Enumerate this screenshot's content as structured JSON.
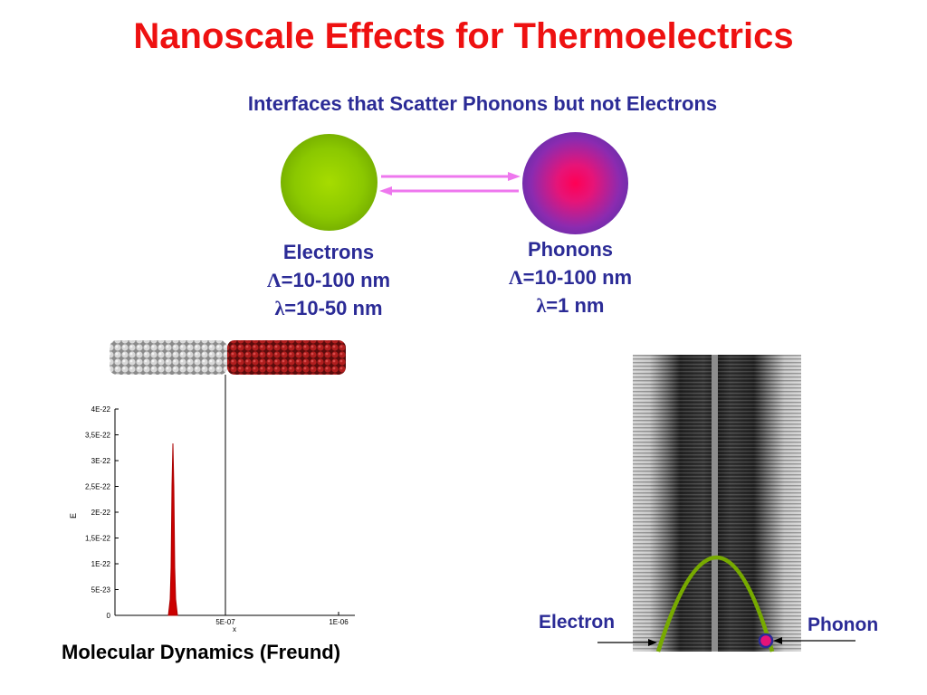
{
  "slide": {
    "title": "Nanoscale Effects for Thermoelectrics",
    "subtitle": "Interfaces that Scatter Phonons but not Electrons"
  },
  "electrons": {
    "name": "Electrons",
    "mfp_symbol": "Λ",
    "mfp_value": "=10-100 nm",
    "wl_symbol": "λ",
    "wl_value": "=10-50 nm",
    "color": "#8bc800"
  },
  "phonons": {
    "name": "Phonons",
    "mfp_symbol": "Λ",
    "mfp_value": "=10-100 nm",
    "wl_symbol": "λ",
    "wl_value": "=1 nm",
    "color": "#e61478"
  },
  "arrow_color": "#ee77ee",
  "md_plot": {
    "caption": "Molecular Dynamics (Freund)",
    "ylabel": "E",
    "xlabel": "x",
    "y_ticks": [
      "4E-22",
      "3,5E-22",
      "3E-22",
      "2,5E-22",
      "2E-22",
      "1,5E-22",
      "1E-22",
      "5E-23",
      "0"
    ],
    "x_ticks": [
      "5E-07",
      "1E-06"
    ],
    "nanowire_colors": [
      "#b0b0b0",
      "#a01818"
    ],
    "peak_color": "#cc0000"
  },
  "tem": {
    "electron_label": "Electron",
    "phonon_label": "Phonon",
    "curve_color": "#77aa00"
  }
}
